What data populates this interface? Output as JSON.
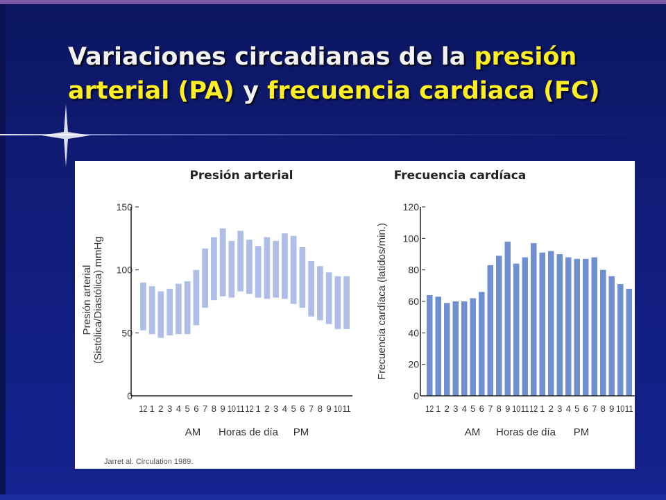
{
  "slide": {
    "title_part1": "Variaciones circadianas de la ",
    "title_part2": "presión arterial (PA)",
    "title_part3": " y ",
    "title_part4": "frecuencia cardiaca (FC)",
    "citation": "Jarret al. Circulation 1989."
  },
  "colors": {
    "background": "#101c78",
    "title_white": "#f2f2f2",
    "title_yellow": "#ffee22",
    "bp_bars": "#aebee6",
    "hr_bars": "#6f8fd3"
  },
  "chart_data": [
    {
      "type": "bar",
      "title": "Presión arterial",
      "ylabel_line1": "Presión arterial",
      "ylabel_line2": "(Sistólica/Diastólica) mmHg",
      "xlabel_am": "AM",
      "xlabel": "Horas de día",
      "xlabel_pm": "PM",
      "categories": [
        "12",
        "1",
        "2",
        "3",
        "4",
        "5",
        "6",
        "7",
        "8",
        "9",
        "10",
        "11",
        "12",
        "1",
        "2",
        "3",
        "4",
        "5",
        "6",
        "7",
        "8",
        "9",
        "10",
        "11"
      ],
      "series": [
        {
          "name": "Sistólica",
          "values": [
            90,
            87,
            83,
            85,
            89,
            91,
            100,
            117,
            126,
            133,
            123,
            131,
            124,
            119,
            126,
            123,
            129,
            127,
            118,
            107,
            103,
            98,
            95,
            95
          ]
        },
        {
          "name": "Diastólica",
          "values": [
            52,
            49,
            46,
            48,
            49,
            49,
            56,
            70,
            76,
            79,
            78,
            83,
            81,
            78,
            77,
            78,
            77,
            73,
            70,
            63,
            60,
            57,
            53,
            53
          ]
        }
      ],
      "ylim": [
        0,
        150
      ],
      "yticks": [
        0,
        50,
        100,
        150
      ]
    },
    {
      "type": "bar",
      "title": "Frecuencia cardíaca",
      "ylabel": "Frecuencia cardíaca (latidos/min.)",
      "xlabel_am": "AM",
      "xlabel": "Horas de día",
      "xlabel_pm": "PM",
      "categories": [
        "12",
        "1",
        "2",
        "3",
        "4",
        "5",
        "6",
        "7",
        "8",
        "9",
        "10",
        "11",
        "12",
        "1",
        "2",
        "3",
        "4",
        "5",
        "6",
        "7",
        "8",
        "9",
        "10",
        "11"
      ],
      "values": [
        64,
        63,
        59,
        60,
        60,
        62,
        66,
        83,
        89,
        98,
        84,
        88,
        97,
        91,
        92,
        90,
        88,
        87,
        87,
        88,
        80,
        76,
        71,
        68
      ],
      "ylim": [
        0,
        120
      ],
      "yticks": [
        0,
        20,
        40,
        60,
        80,
        100,
        120
      ]
    }
  ]
}
